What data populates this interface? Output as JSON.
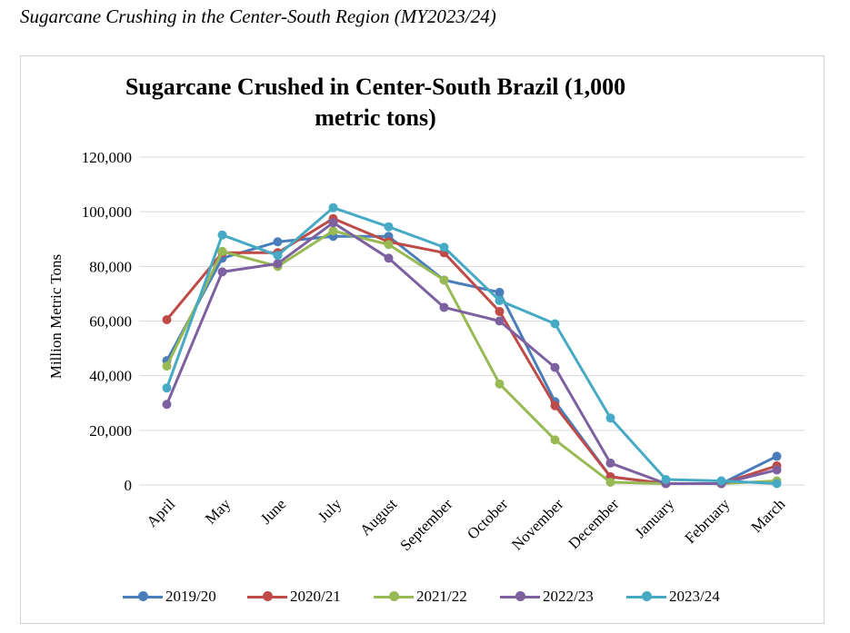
{
  "caption": "Sugarcane Crushing in the Center-South Region (MY2023/24)",
  "chart_data": {
    "type": "line",
    "title": "Sugarcane Crushed in Center-South Brazil (1,000 metric tons)",
    "xlabel": "",
    "ylabel": "Million Metric Tons",
    "ylim": [
      0,
      120000
    ],
    "yticks": [
      "0",
      "20,000",
      "40,000",
      "60,000",
      "80,000",
      "100,000",
      "120,000"
    ],
    "ytick_values": [
      0,
      20000,
      40000,
      60000,
      80000,
      100000,
      120000
    ],
    "grid": true,
    "legend_position": "bottom",
    "categories": [
      "April",
      "May",
      "June",
      "July",
      "August",
      "September",
      "October",
      "November",
      "December",
      "January",
      "February",
      "March"
    ],
    "series": [
      {
        "name": "2019/20",
        "color": "#4a7ebb",
        "values": [
          45500,
          83000,
          89000,
          91000,
          91000,
          75000,
          70500,
          30500,
          3000,
          500,
          500,
          10500
        ]
      },
      {
        "name": "2020/21",
        "color": "#be4b48",
        "values": [
          60500,
          85000,
          85000,
          97500,
          89000,
          85000,
          63500,
          29000,
          3000,
          500,
          500,
          7000
        ]
      },
      {
        "name": "2021/22",
        "color": "#98b954",
        "values": [
          43500,
          85500,
          80000,
          93000,
          88000,
          75000,
          37000,
          16500,
          1000,
          500,
          500,
          1500
        ]
      },
      {
        "name": "2022/23",
        "color": "#7d60a0",
        "values": [
          29500,
          78000,
          81000,
          96000,
          83000,
          65000,
          60000,
          43000,
          8000,
          500,
          500,
          5500
        ]
      },
      {
        "name": "2023/24",
        "color": "#46aac5",
        "values": [
          35500,
          91500,
          84000,
          101500,
          94500,
          87000,
          67500,
          59000,
          24500,
          2000,
          1500,
          500
        ]
      }
    ]
  }
}
